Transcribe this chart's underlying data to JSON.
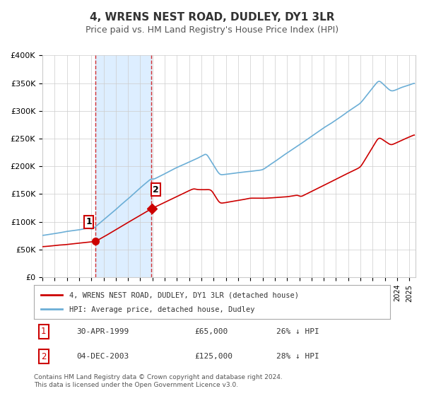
{
  "title": "4, WRENS NEST ROAD, DUDLEY, DY1 3LR",
  "subtitle": "Price paid vs. HM Land Registry's House Price Index (HPI)",
  "legend_line1": "4, WRENS NEST ROAD, DUDLEY, DY1 3LR (detached house)",
  "legend_line2": "HPI: Average price, detached house, Dudley",
  "transaction1_label": "1",
  "transaction1_date": "30-APR-1999",
  "transaction1_price": "£65,000",
  "transaction1_hpi": "26% ↓ HPI",
  "transaction1_year": 1999.33,
  "transaction1_value": 65000,
  "transaction2_label": "2",
  "transaction2_date": "04-DEC-2003",
  "transaction2_price": "£125,000",
  "transaction2_hpi": "28% ↓ HPI",
  "transaction2_year": 2003.92,
  "transaction2_value": 125000,
  "footer": "Contains HM Land Registry data © Crown copyright and database right 2024.\nThis data is licensed under the Open Government Licence v3.0.",
  "hpi_color": "#6baed6",
  "price_color": "#cc0000",
  "marker_color": "#cc0000",
  "background_color": "#ffffff",
  "grid_color": "#cccccc",
  "shaded_region_color": "#ddeeff",
  "ylim": [
    0,
    400000
  ],
  "xlim_start": 1995,
  "xlim_end": 2025.5
}
